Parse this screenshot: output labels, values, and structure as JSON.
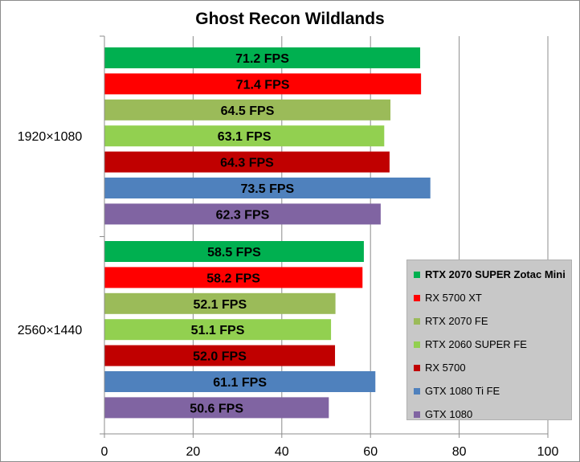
{
  "chart_data": {
    "type": "bar",
    "orientation": "horizontal",
    "title": "Ghost Recon Wildlands",
    "categories": [
      "1920×1080",
      "2560×1440"
    ],
    "xlim": [
      0,
      100
    ],
    "x_ticks": [
      0,
      20,
      40,
      60,
      80,
      100
    ],
    "grid": true,
    "legend_position": "right",
    "series": [
      {
        "name": "RTX 2070 SUPER Zotac Mini",
        "color": "#00b050",
        "values": [
          71.2,
          58.5
        ],
        "labels": [
          "71.2 FPS",
          "58.5 FPS"
        ],
        "legend_bold": true
      },
      {
        "name": "RX 5700 XT",
        "color": "#ff0000",
        "values": [
          71.4,
          58.2
        ],
        "labels": [
          "71.4 FPS",
          "58.2 FPS"
        ]
      },
      {
        "name": "RTX 2070 FE",
        "color": "#9bbb59",
        "values": [
          64.5,
          52.1
        ],
        "labels": [
          "64.5 FPS",
          "52.1 FPS"
        ]
      },
      {
        "name": "RTX 2060 SUPER FE",
        "color": "#92d050",
        "values": [
          63.1,
          51.1
        ],
        "labels": [
          "63.1 FPS",
          "51.1 FPS"
        ]
      },
      {
        "name": "RX 5700",
        "color": "#c00000",
        "values": [
          64.3,
          52.0
        ],
        "labels": [
          "64.3 FPS",
          "52.0 FPS"
        ]
      },
      {
        "name": "GTX 1080 Ti FE",
        "color": "#4f81bd",
        "values": [
          73.5,
          61.1
        ],
        "labels": [
          "73.5 FPS",
          "61.1 FPS"
        ]
      },
      {
        "name": "GTX 1080",
        "color": "#8064a2",
        "values": [
          62.3,
          50.6
        ],
        "labels": [
          "62.3 FPS",
          "50.6 FPS"
        ]
      }
    ]
  }
}
